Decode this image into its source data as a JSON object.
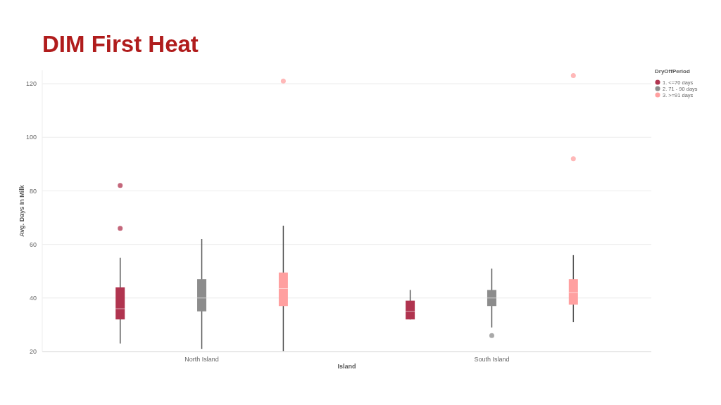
{
  "chart_data": {
    "type": "box",
    "title": "DIM First Heat",
    "xlabel": "Island",
    "ylabel": "Avg. Days In Milk",
    "legend_title": "DryOffPeriod",
    "legend": "top right",
    "grid": "y",
    "categories": [
      "North Island",
      "South Island"
    ],
    "ylim": [
      20,
      125
    ],
    "yticks": [
      20,
      40,
      60,
      80,
      100,
      120
    ],
    "series": [
      {
        "name": "1. <=70 days",
        "color": "#b0344f",
        "boxes": [
          {
            "low": 23,
            "q1": 32,
            "median": 36,
            "q3": 44,
            "high": 55,
            "outliers": [
              66,
              82
            ]
          },
          {
            "low": 32,
            "q1": 32,
            "median": 35,
            "q3": 39,
            "high": 43
          }
        ]
      },
      {
        "name": "2. 71 - 90 days",
        "color": "#8c8c8c",
        "boxes": [
          {
            "low": 21,
            "q1": 35,
            "median": 40,
            "q3": 47,
            "high": 62
          },
          {
            "low": 29,
            "q1": 37,
            "median": 40,
            "q3": 43,
            "high": 51,
            "outliers": [
              26
            ]
          }
        ]
      },
      {
        "name": "3. >=91 days",
        "color": "#ffa0a0",
        "boxes": [
          {
            "low": 20.2,
            "q1": 37,
            "median": 43.5,
            "q3": 49.5,
            "high": 67,
            "outliers": [
              121
            ]
          },
          {
            "low": 31,
            "q1": 37.5,
            "median": 42,
            "q3": 47,
            "high": 56,
            "outliers": [
              92,
              123
            ]
          }
        ]
      }
    ]
  }
}
